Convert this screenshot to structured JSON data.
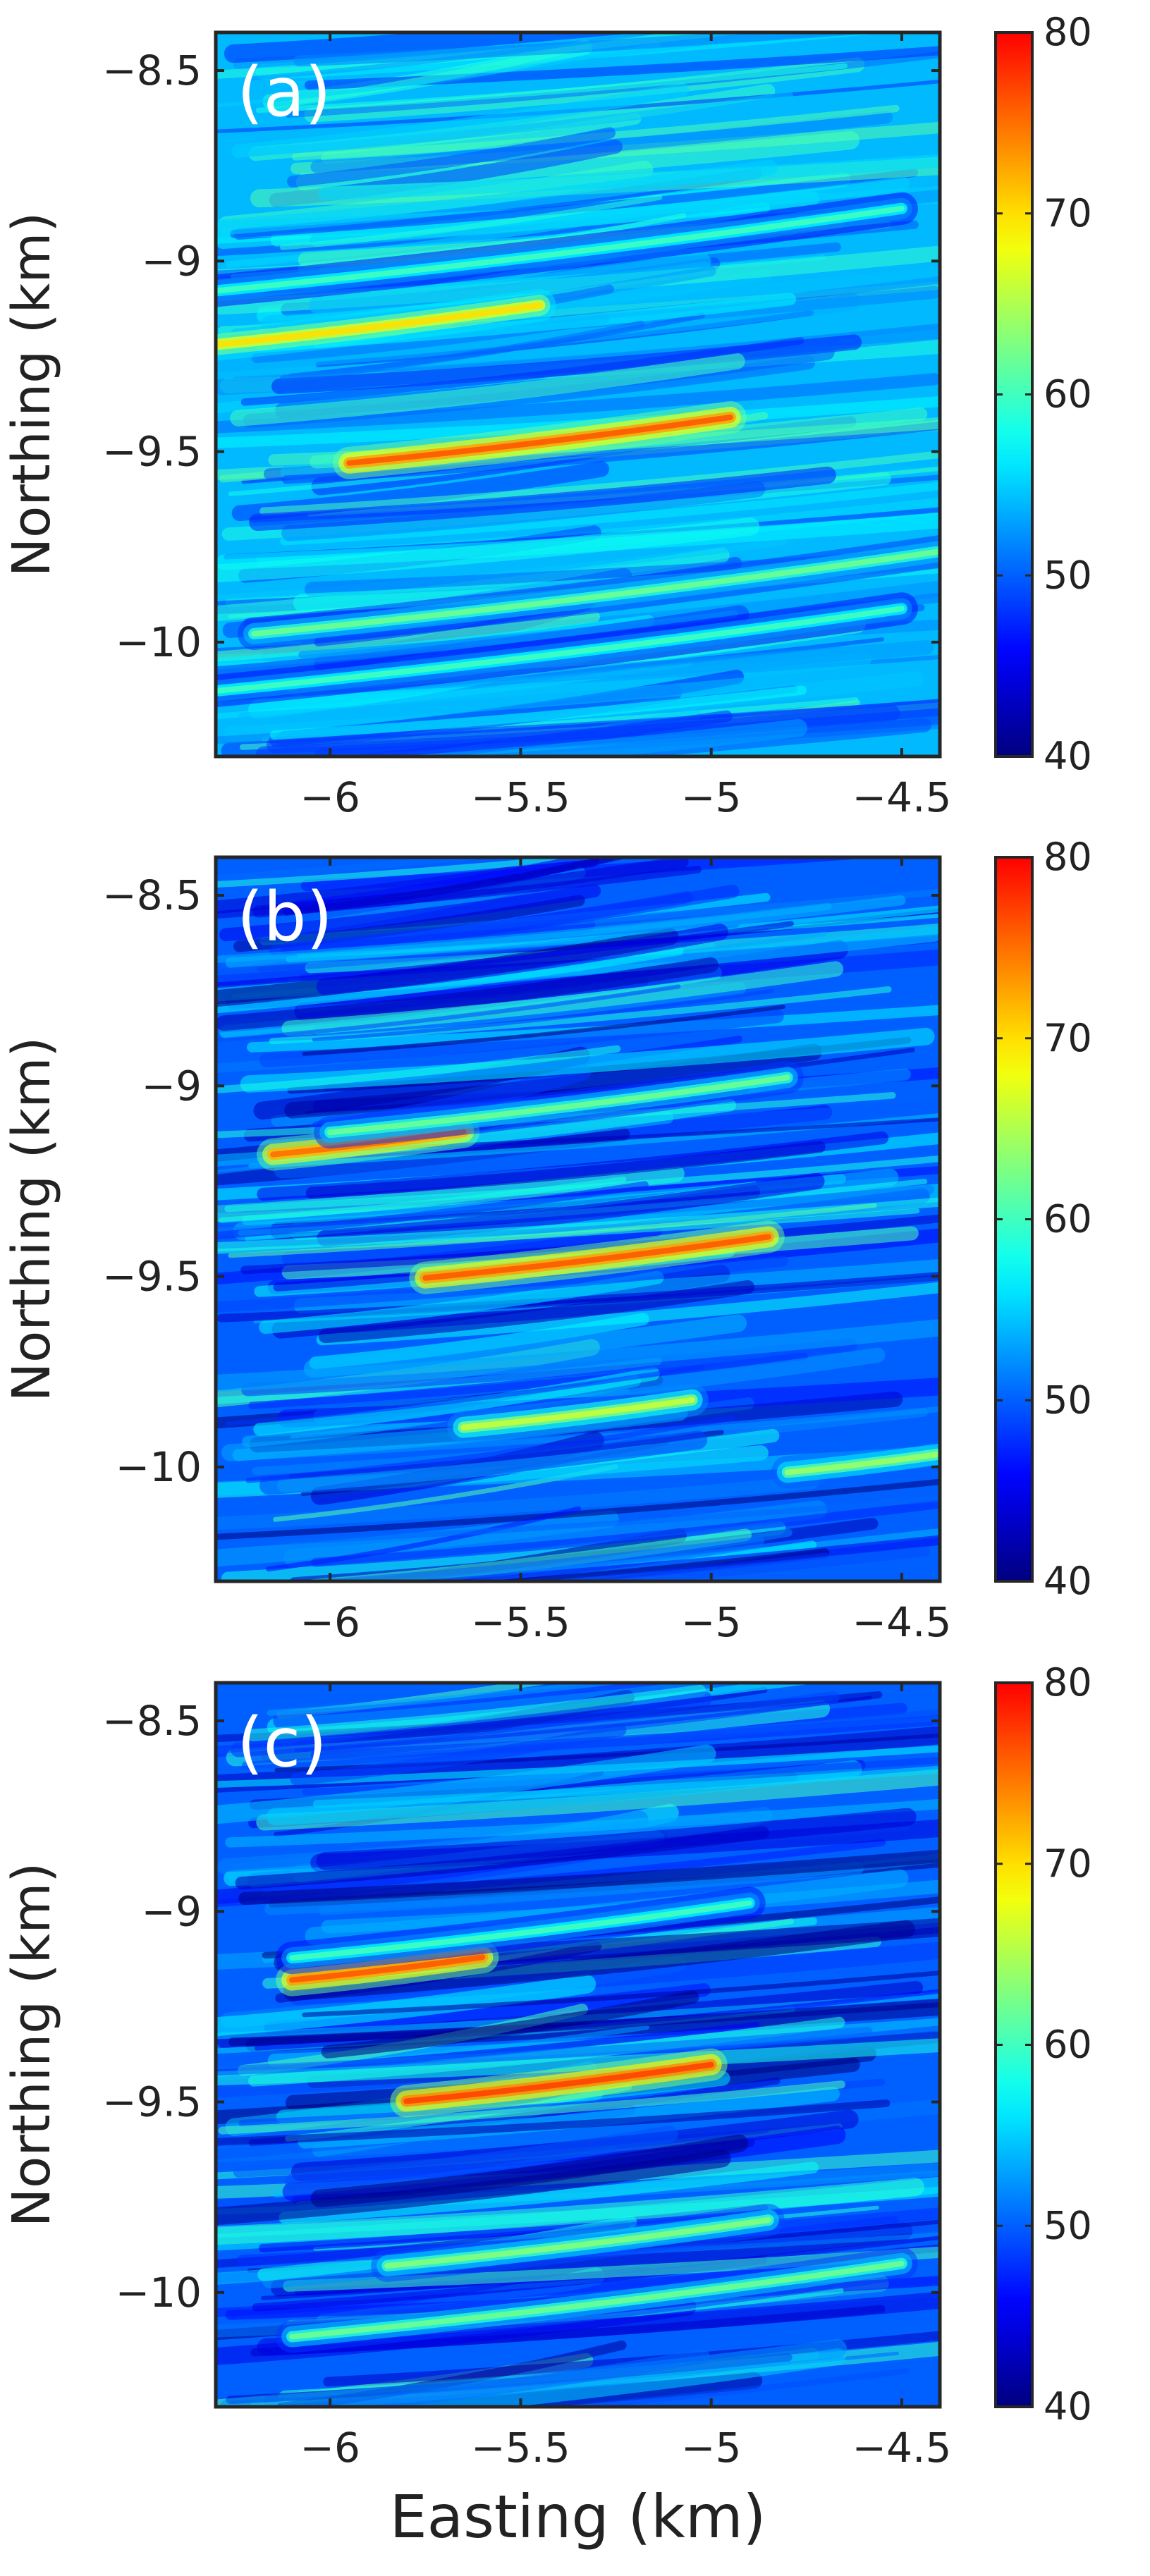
{
  "chart_data": [
    {
      "type": "heatmap",
      "panel_label": "(a)",
      "xlabel": "",
      "ylabel": "Northing (km)",
      "xlim": [
        -6.3,
        -4.4
      ],
      "ylim": [
        -10.3,
        -8.4
      ],
      "xticks": [
        -6,
        -5.5,
        -5,
        -4.5
      ],
      "xtick_labels": [
        "-6",
        "-5.5",
        "-5",
        "-4.5"
      ],
      "yticks": [
        -8.5,
        -9,
        -9.5,
        -10
      ],
      "ytick_labels": [
        "-8.5",
        "-9",
        "-9.5",
        "-10"
      ],
      "colorbar": {
        "range": [
          40,
          80
        ],
        "ticks": [
          40,
          50,
          60,
          70,
          80
        ],
        "tick_labels": [
          "40",
          "50",
          "60",
          "70",
          "80"
        ]
      },
      "base_level": 54,
      "features": [
        {
          "x": -5.9,
          "y": -9.17,
          "halfwidth": 0.45,
          "value": 70
        },
        {
          "x": -5.45,
          "y": -9.47,
          "halfwidth": 0.5,
          "value": 76
        },
        {
          "x": -5.3,
          "y": -9.87,
          "halfwidth": 0.9,
          "value": 62
        },
        {
          "x": -5.4,
          "y": -10.02,
          "halfwidth": 0.9,
          "value": 60
        },
        {
          "x": -5.4,
          "y": -8.97,
          "halfwidth": 0.9,
          "value": 60
        }
      ]
    },
    {
      "type": "heatmap",
      "panel_label": "(b)",
      "xlabel": "",
      "ylabel": "Northing (km)",
      "xlim": [
        -6.3,
        -4.4
      ],
      "ylim": [
        -10.3,
        -8.4
      ],
      "xticks": [
        -6,
        -5.5,
        -5,
        -4.5
      ],
      "xtick_labels": [
        "-6",
        "-5.5",
        "-5",
        "-4.5"
      ],
      "yticks": [
        -8.5,
        -9,
        -9.5,
        -10
      ],
      "ytick_labels": [
        "-8.5",
        "-9",
        "-9.5",
        "-10"
      ],
      "colorbar": {
        "range": [
          40,
          80
        ],
        "ticks": [
          40,
          50,
          60,
          70,
          80
        ],
        "tick_labels": [
          "40",
          "50",
          "60",
          "70",
          "80"
        ]
      },
      "base_level": 50,
      "features": [
        {
          "x": -5.9,
          "y": -9.15,
          "halfwidth": 0.25,
          "value": 75
        },
        {
          "x": -5.3,
          "y": -9.45,
          "halfwidth": 0.45,
          "value": 76
        },
        {
          "x": -5.35,
          "y": -9.86,
          "halfwidth": 0.3,
          "value": 66
        },
        {
          "x": -5.4,
          "y": -9.05,
          "halfwidth": 0.6,
          "value": 62
        },
        {
          "x": -4.6,
          "y": -9.99,
          "halfwidth": 0.2,
          "value": 64
        }
      ]
    },
    {
      "type": "heatmap",
      "panel_label": "(c)",
      "xlabel": "Easting (km)",
      "ylabel": "Northing (km)",
      "xlim": [
        -6.3,
        -4.4
      ],
      "ylim": [
        -10.3,
        -8.4
      ],
      "xticks": [
        -6,
        -5.5,
        -5,
        -4.5
      ],
      "xtick_labels": [
        "-6",
        "-5.5",
        "-5",
        "-4.5"
      ],
      "yticks": [
        -8.5,
        -9,
        -9.5,
        -10
      ],
      "ytick_labels": [
        "-8.5",
        "-9",
        "-9.5",
        "-10"
      ],
      "colorbar": {
        "range": [
          40,
          80
        ],
        "ticks": [
          40,
          50,
          60,
          70,
          80
        ],
        "tick_labels": [
          "40",
          "50",
          "60",
          "70",
          "80"
        ]
      },
      "base_level": 50,
      "features": [
        {
          "x": -5.85,
          "y": -9.15,
          "halfwidth": 0.25,
          "value": 76
        },
        {
          "x": -5.4,
          "y": -9.45,
          "halfwidth": 0.4,
          "value": 77
        },
        {
          "x": -5.35,
          "y": -9.87,
          "halfwidth": 0.5,
          "value": 63
        },
        {
          "x": -5.3,
          "y": -10.02,
          "halfwidth": 0.8,
          "value": 62
        },
        {
          "x": -5.5,
          "y": -9.05,
          "halfwidth": 0.6,
          "value": 60
        }
      ]
    }
  ],
  "colormap": [
    "#00007f",
    "#0000ff",
    "#007fff",
    "#00ffff",
    "#7fff7f",
    "#ffff00",
    "#ff7f00",
    "#ff0000",
    "#7f0000"
  ]
}
